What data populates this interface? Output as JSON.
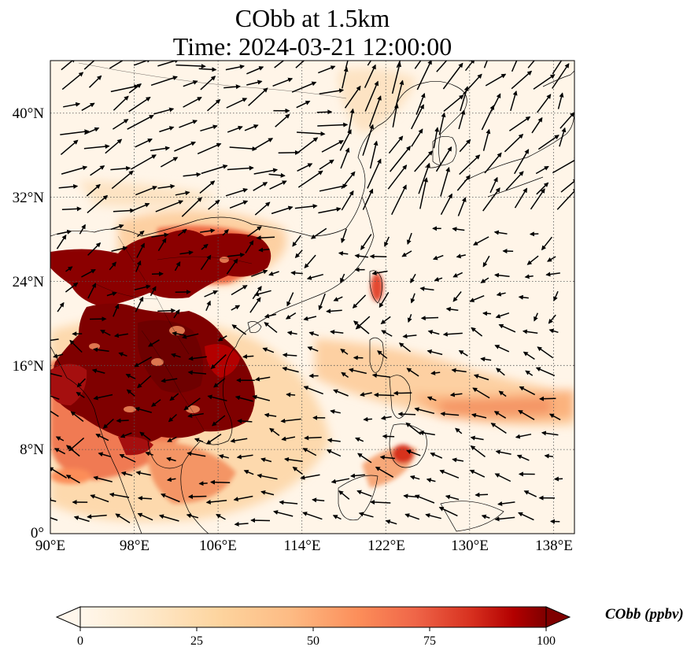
{
  "title": {
    "line1": "CObb at 1.5km",
    "line2": "Time: 2024-03-21 12:00:00"
  },
  "map": {
    "type": "filled-contour map with wind vectors",
    "projection": "PlateCarree",
    "lon_range": [
      90,
      140
    ],
    "lat_range": [
      0,
      45
    ],
    "gridlines": "dotted",
    "x_ticks": [
      "90°E",
      "98°E",
      "106°E",
      "114°E",
      "122°E",
      "130°E",
      "138°E"
    ],
    "y_ticks": [
      "0°",
      "8°N",
      "16°N",
      "24°N",
      "32°N",
      "40°N"
    ],
    "colormap": "OrRd",
    "colors": {
      "low": "#fff7ec",
      "mid_low": "#fdd49e",
      "mid": "#fc8d59",
      "high": "#d7301f",
      "max": "#7f0000",
      "coast": "#000000",
      "arrow": "#000000"
    }
  },
  "colorbar": {
    "label": "CObb (ppbv)",
    "ticks": [
      "0",
      "25",
      "50",
      "75",
      "100"
    ],
    "range": [
      0,
      100
    ],
    "extend": "both"
  }
}
